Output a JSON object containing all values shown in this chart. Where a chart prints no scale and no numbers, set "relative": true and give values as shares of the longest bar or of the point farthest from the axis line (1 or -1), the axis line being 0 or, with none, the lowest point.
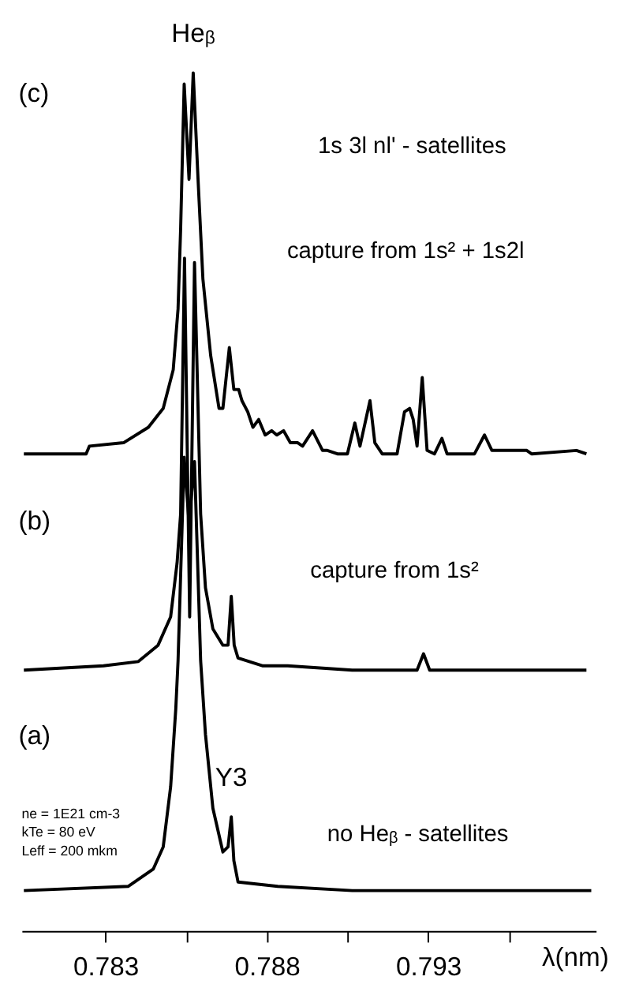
{
  "chart_data": {
    "type": "line",
    "relative": true,
    "marker": "none",
    "line_style": "solid",
    "xlabel": "λ(nm)",
    "xlim": [
      0.7804,
      0.7982
    ],
    "xticks": [
      0.783,
      {
        "value": 0.7855,
        "label": null
      },
      0.788,
      {
        "value": 0.7905,
        "label": null
      },
      0.793,
      {
        "value": 0.7955,
        "label": null
      }
    ],
    "series": [
      {
        "color": "#000000",
        "x": [
          0.78047,
          0.7824,
          0.7825,
          0.78356,
          0.78433,
          0.78479,
          0.7851,
          0.78525,
          0.78533,
          0.78544,
          0.78559,
          0.78572,
          0.78587,
          0.78602,
          0.78626,
          0.78652,
          0.78664,
          0.78684,
          0.78698,
          0.78713,
          0.78723,
          0.78741,
          0.78757,
          0.78775,
          0.78795,
          0.78815,
          0.78831,
          0.78852,
          0.78873,
          0.78896,
          0.78911,
          0.78942,
          0.78973,
          0.78988,
          0.79019,
          0.7905,
          0.79073,
          0.79089,
          0.7912,
          0.79135,
          0.79158,
          0.79204,
          0.79227,
          0.79243,
          0.79254,
          0.79266,
          0.79282,
          0.79297,
          0.7932,
          0.79343,
          0.79359,
          0.79444,
          0.79475,
          0.79498,
          0.79606,
          0.79621,
          0.7976,
          0.79791
        ],
        "values": [
          0.556,
          0.556,
          0.565,
          0.569,
          0.587,
          0.609,
          0.654,
          0.725,
          0.818,
          0.987,
          0.876,
          1,
          0.876,
          0.76,
          0.671,
          0.609,
          0.609,
          0.68,
          0.631,
          0.631,
          0.618,
          0.605,
          0.587,
          0.596,
          0.578,
          0.583,
          0.578,
          0.583,
          0.569,
          0.569,
          0.565,
          0.583,
          0.56,
          0.56,
          0.556,
          0.556,
          0.592,
          0.565,
          0.618,
          0.569,
          0.556,
          0.556,
          0.605,
          0.609,
          0.596,
          0.565,
          0.645,
          0.56,
          0.556,
          0.574,
          0.556,
          0.556,
          0.578,
          0.56,
          0.56,
          0.556,
          0.56,
          0.556
        ]
      },
      {
        "color": "#000000",
        "x": [
          0.78047,
          0.78294,
          0.78402,
          0.78463,
          0.78502,
          0.78522,
          0.78533,
          0.78545,
          0.78561,
          0.78576,
          0.78595,
          0.7861,
          0.78633,
          0.78664,
          0.7868,
          0.7869,
          0.78699,
          0.78711,
          0.78788,
          0.78865,
          0.79065,
          0.79266,
          0.79286,
          0.79305,
          0.79791
        ],
        "values": [
          0.304,
          0.309,
          0.314,
          0.333,
          0.366,
          0.429,
          0.486,
          0.784,
          0.366,
          0.779,
          0.486,
          0.4,
          0.352,
          0.333,
          0.333,
          0.39,
          0.333,
          0.318,
          0.309,
          0.309,
          0.304,
          0.304,
          0.323,
          0.304,
          0.304
        ]
      },
      {
        "color": "#000000",
        "x": [
          0.78047,
          0.78371,
          0.78448,
          0.78479,
          0.78502,
          0.78518,
          0.78525,
          0.78544,
          0.78559,
          0.78576,
          0.78595,
          0.7861,
          0.78633,
          0.78664,
          0.7868,
          0.7869,
          0.78698,
          0.78711,
          0.78834,
          0.79065,
          0.79806
        ],
        "values": [
          0.047,
          0.052,
          0.072,
          0.098,
          0.168,
          0.259,
          0.315,
          0.552,
          0.476,
          0.547,
          0.315,
          0.229,
          0.143,
          0.092,
          0.098,
          0.133,
          0.082,
          0.057,
          0.052,
          0.047,
          0.047
        ]
      }
    ],
    "annotations": [
      "(c)",
      {
        "text": "Heᵦ",
        "x": 0.78572,
        "y": 1
      },
      "1s 3l nl' - satellites",
      "capture from  1s² + 1s2l",
      "(b)",
      "capture from  1s²",
      "(a)",
      {
        "text": "Y3",
        "x": 0.7869,
        "y": 0.133
      },
      "no Heᵦ - satellites",
      "ne = 1E21 cm-3",
      "kTe = 80 eV",
      "Leff = 200 mkm"
    ]
  }
}
